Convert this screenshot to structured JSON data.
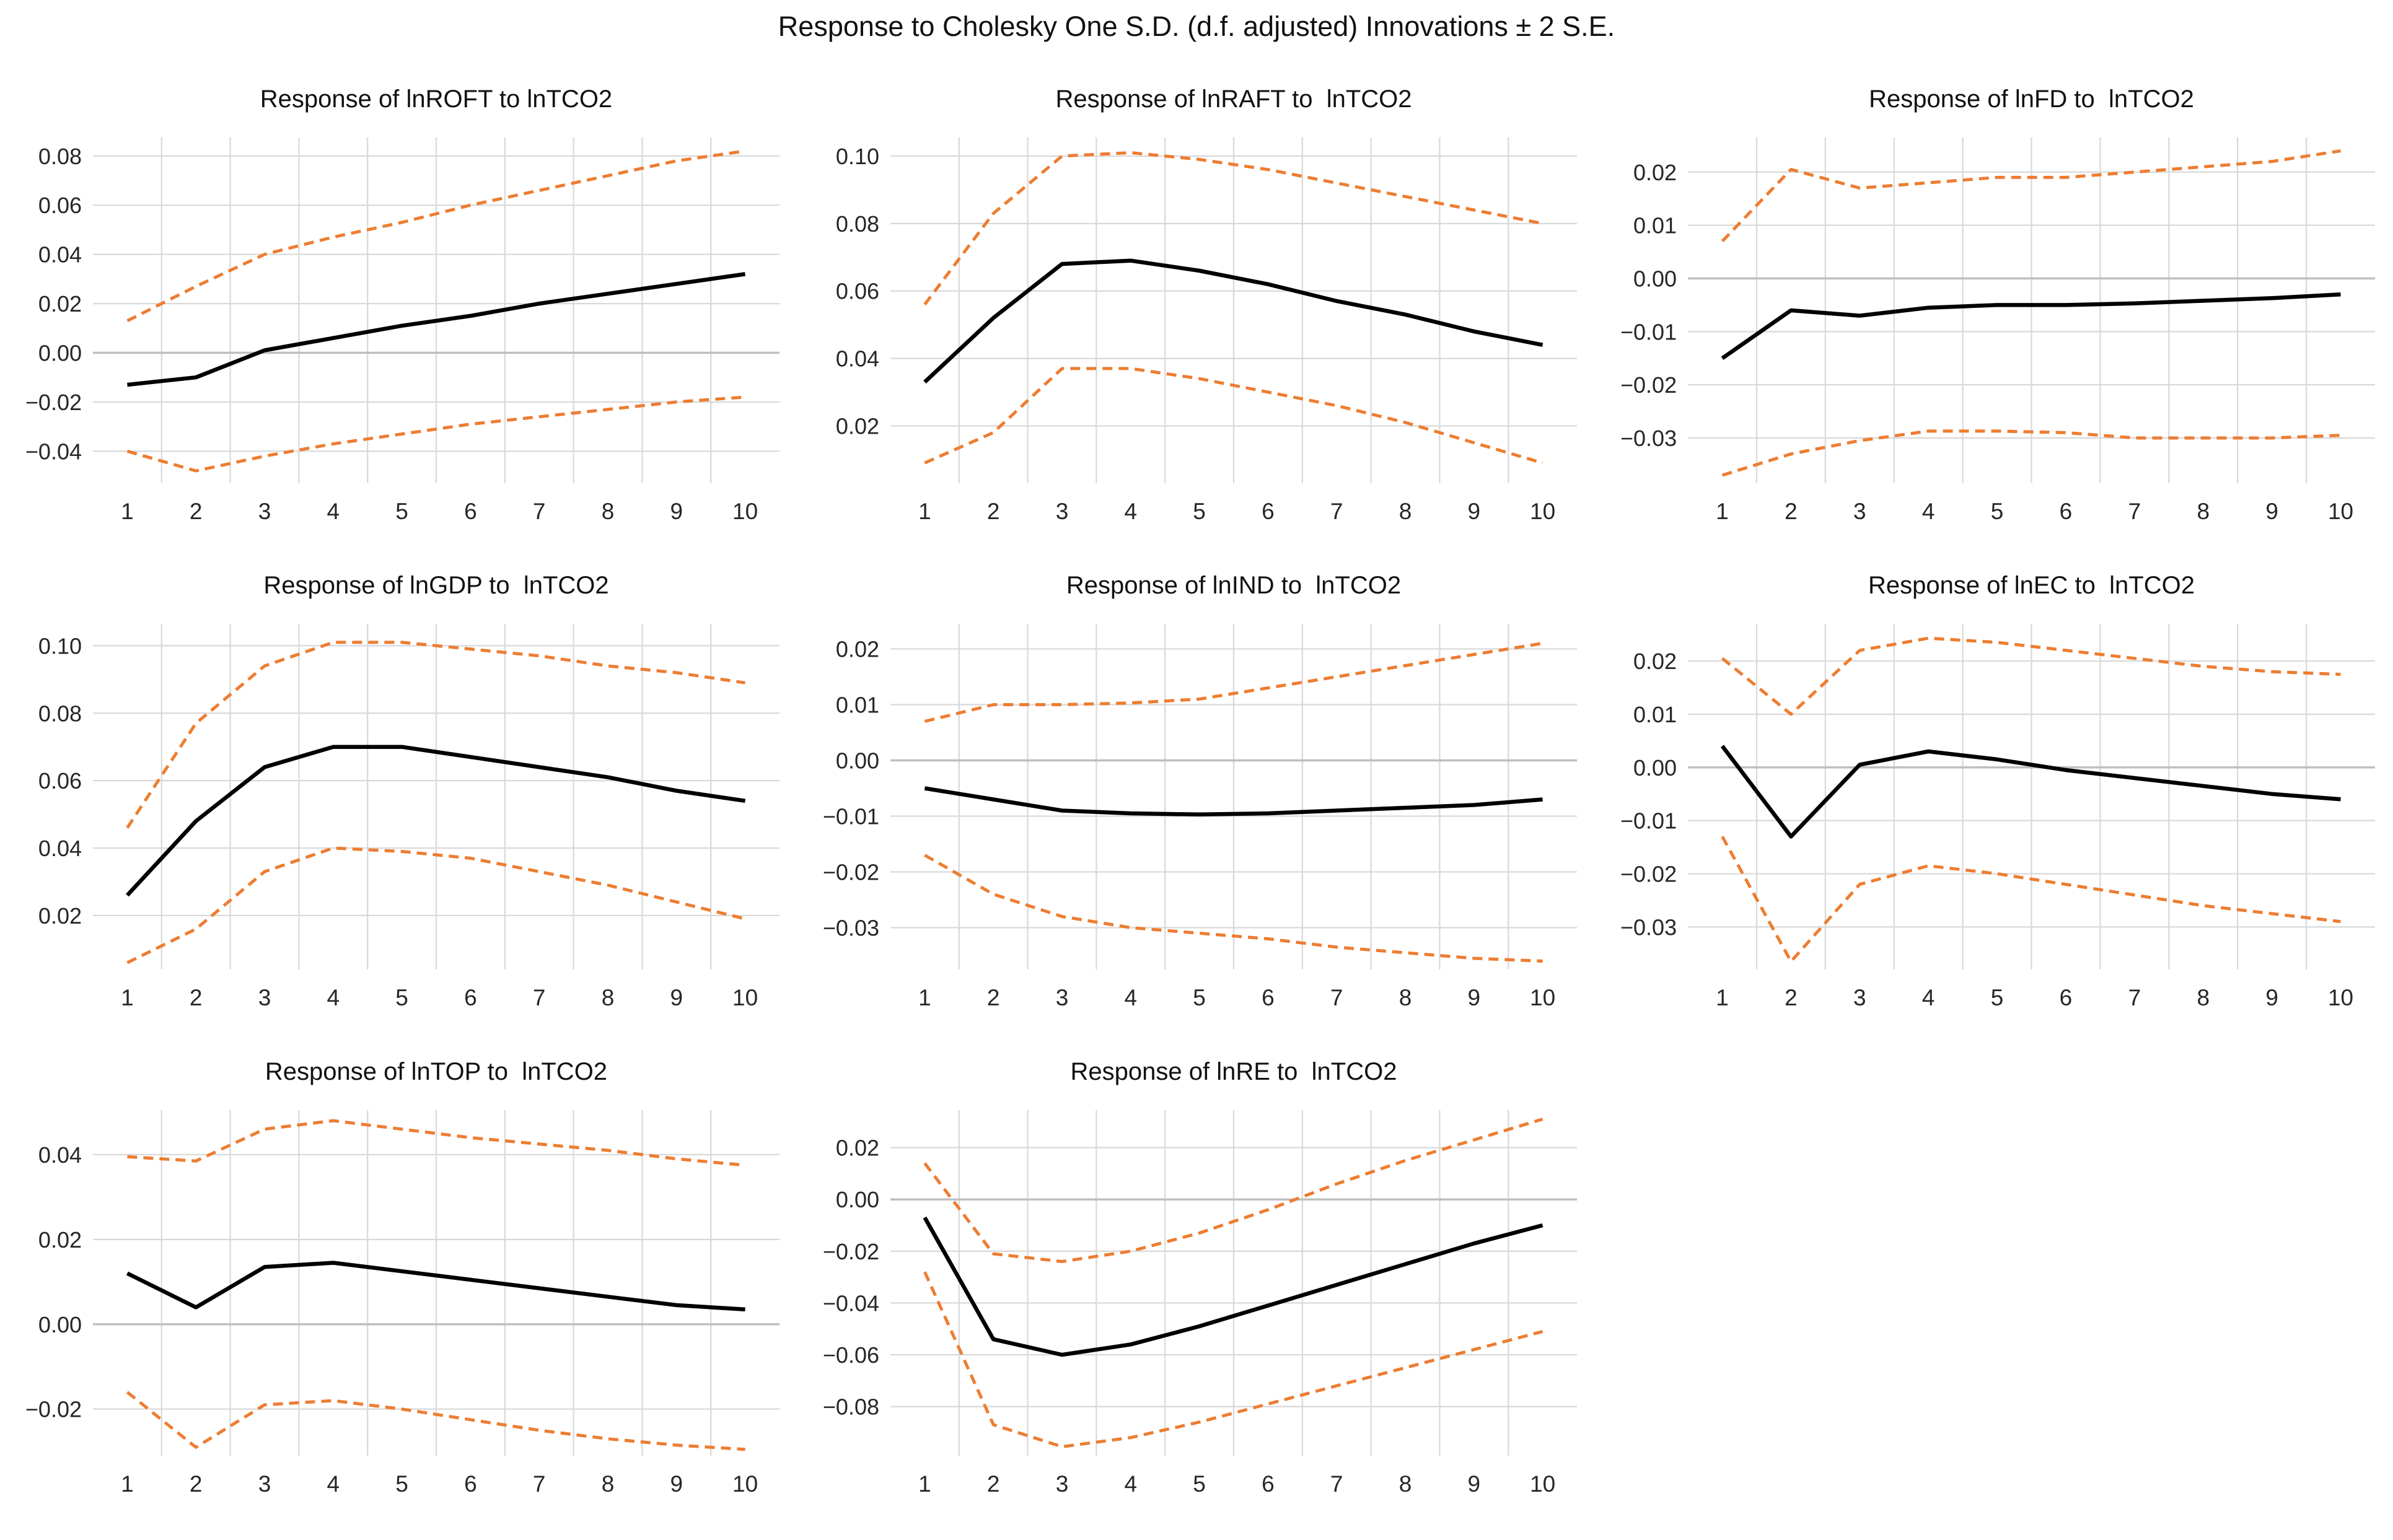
{
  "page_title": "Response to Cholesky One S.D. (d.f. adjusted) Innovations ± 2 S.E.",
  "x_categories": [
    1,
    2,
    3,
    4,
    5,
    6,
    7,
    8,
    9,
    10
  ],
  "styles": {
    "band_color": "#ED7D31",
    "response_color": "#000000",
    "grid_color": "#D9D9D9",
    "zero_line_color": "#BFBFBF",
    "text_color": "#262626",
    "background": "#FFFFFF"
  },
  "chart_data": [
    {
      "id": "lnROFT",
      "type": "line",
      "title": "Response of lnROFT to lnTCO2",
      "xlabel": "",
      "ylabel": "",
      "ylim": [
        -0.053,
        0.0875
      ],
      "grid": true,
      "legend": "none",
      "yticks": [
        {
          "v": 0.08,
          "label": "0.08"
        },
        {
          "v": 0.06,
          "label": "0.06"
        },
        {
          "v": 0.04,
          "label": "0.04"
        },
        {
          "v": 0.02,
          "label": "0.02"
        },
        {
          "v": 0.0,
          "label": "0.00"
        },
        {
          "v": -0.02,
          "label": "−0.02"
        },
        {
          "v": -0.04,
          "label": "−0.04"
        }
      ],
      "series": [
        {
          "name": "upper-2se-band",
          "line_style": "dashed",
          "color": "#ED7D31",
          "values": [
            0.013,
            0.027,
            0.04,
            0.047,
            0.053,
            0.06,
            0.066,
            0.072,
            0.078,
            0.082
          ]
        },
        {
          "name": "response",
          "line_style": "solid",
          "color": "#000000",
          "values": [
            -0.013,
            -0.01,
            0.001,
            0.006,
            0.011,
            0.015,
            0.02,
            0.024,
            0.028,
            0.032
          ]
        },
        {
          "name": "lower-2se-band",
          "line_style": "dashed",
          "color": "#ED7D31",
          "values": [
            -0.04,
            -0.048,
            -0.042,
            -0.037,
            -0.033,
            -0.029,
            -0.026,
            -0.023,
            -0.02,
            -0.018
          ]
        }
      ]
    },
    {
      "id": "lnRAFT",
      "type": "line",
      "title": "Response of lnRAFT to  lnTCO2",
      "xlabel": "",
      "ylabel": "",
      "ylim": [
        0.003,
        0.1055
      ],
      "grid": true,
      "legend": "none",
      "yticks": [
        {
          "v": 0.1,
          "label": "0.10"
        },
        {
          "v": 0.08,
          "label": "0.08"
        },
        {
          "v": 0.06,
          "label": "0.06"
        },
        {
          "v": 0.04,
          "label": "0.04"
        },
        {
          "v": 0.02,
          "label": "0.02"
        }
      ],
      "series": [
        {
          "name": "upper-2se-band",
          "line_style": "dashed",
          "color": "#ED7D31",
          "values": [
            0.056,
            0.083,
            0.1,
            0.101,
            0.099,
            0.096,
            0.092,
            0.088,
            0.084,
            0.08
          ]
        },
        {
          "name": "response",
          "line_style": "solid",
          "color": "#000000",
          "values": [
            0.033,
            0.052,
            0.068,
            0.069,
            0.066,
            0.062,
            0.057,
            0.053,
            0.048,
            0.044
          ]
        },
        {
          "name": "lower-2se-band",
          "line_style": "dashed",
          "color": "#ED7D31",
          "values": [
            0.009,
            0.018,
            0.037,
            0.037,
            0.034,
            0.03,
            0.026,
            0.021,
            0.015,
            0.009
          ]
        }
      ]
    },
    {
      "id": "lnFD",
      "type": "line",
      "title": "Response of lnFD to  lnTCO2",
      "xlabel": "",
      "ylabel": "",
      "ylim": [
        -0.0385,
        0.0265
      ],
      "grid": true,
      "legend": "none",
      "yticks": [
        {
          "v": 0.02,
          "label": "0.02"
        },
        {
          "v": 0.01,
          "label": "0.01"
        },
        {
          "v": 0.0,
          "label": "0.00"
        },
        {
          "v": -0.01,
          "label": "−0.01"
        },
        {
          "v": -0.02,
          "label": "−0.02"
        },
        {
          "v": -0.03,
          "label": "−0.03"
        }
      ],
      "series": [
        {
          "name": "upper-2se-band",
          "line_style": "dashed",
          "color": "#ED7D31",
          "values": [
            0.007,
            0.0205,
            0.017,
            0.018,
            0.019,
            0.019,
            0.02,
            0.021,
            0.022,
            0.024
          ]
        },
        {
          "name": "response",
          "line_style": "solid",
          "color": "#000000",
          "values": [
            -0.015,
            -0.006,
            -0.007,
            -0.0055,
            -0.005,
            -0.005,
            -0.0047,
            -0.0042,
            -0.0037,
            -0.003
          ]
        },
        {
          "name": "lower-2se-band",
          "line_style": "dashed",
          "color": "#ED7D31",
          "values": [
            -0.037,
            -0.033,
            -0.0305,
            -0.0287,
            -0.0287,
            -0.029,
            -0.03,
            -0.03,
            -0.03,
            -0.0295
          ]
        }
      ]
    },
    {
      "id": "lnGDP",
      "type": "line",
      "title": "Response of lnGDP to  lnTCO2",
      "xlabel": "",
      "ylabel": "",
      "ylim": [
        0.004,
        0.1065
      ],
      "grid": true,
      "legend": "none",
      "yticks": [
        {
          "v": 0.1,
          "label": "0.10"
        },
        {
          "v": 0.08,
          "label": "0.08"
        },
        {
          "v": 0.06,
          "label": "0.06"
        },
        {
          "v": 0.04,
          "label": "0.04"
        },
        {
          "v": 0.02,
          "label": "0.02"
        }
      ],
      "series": [
        {
          "name": "upper-2se-band",
          "line_style": "dashed",
          "color": "#ED7D31",
          "values": [
            0.046,
            0.077,
            0.094,
            0.101,
            0.101,
            0.099,
            0.097,
            0.094,
            0.092,
            0.089
          ]
        },
        {
          "name": "response",
          "line_style": "solid",
          "color": "#000000",
          "values": [
            0.026,
            0.048,
            0.064,
            0.07,
            0.07,
            0.067,
            0.064,
            0.061,
            0.057,
            0.054
          ]
        },
        {
          "name": "lower-2se-band",
          "line_style": "dashed",
          "color": "#ED7D31",
          "values": [
            0.006,
            0.016,
            0.033,
            0.04,
            0.039,
            0.037,
            0.033,
            0.029,
            0.024,
            0.019
          ]
        }
      ]
    },
    {
      "id": "lnIND",
      "type": "line",
      "title": "Response of lnIND to  lnTCO2",
      "xlabel": "",
      "ylabel": "",
      "ylim": [
        -0.0375,
        0.0245
      ],
      "grid": true,
      "legend": "none",
      "yticks": [
        {
          "v": 0.02,
          "label": "0.02"
        },
        {
          "v": 0.01,
          "label": "0.01"
        },
        {
          "v": 0.0,
          "label": "0.00"
        },
        {
          "v": -0.01,
          "label": "−0.01"
        },
        {
          "v": -0.02,
          "label": "−0.02"
        },
        {
          "v": -0.03,
          "label": "−0.03"
        }
      ],
      "series": [
        {
          "name": "upper-2se-band",
          "line_style": "dashed",
          "color": "#ED7D31",
          "values": [
            0.007,
            0.01,
            0.01,
            0.0103,
            0.011,
            0.013,
            0.015,
            0.017,
            0.019,
            0.021
          ]
        },
        {
          "name": "response",
          "line_style": "solid",
          "color": "#000000",
          "values": [
            -0.005,
            -0.007,
            -0.009,
            -0.0095,
            -0.0097,
            -0.0095,
            -0.009,
            -0.0085,
            -0.008,
            -0.007
          ]
        },
        {
          "name": "lower-2se-band",
          "line_style": "dashed",
          "color": "#ED7D31",
          "values": [
            -0.017,
            -0.024,
            -0.028,
            -0.03,
            -0.031,
            -0.032,
            -0.0335,
            -0.0345,
            -0.0355,
            -0.036
          ]
        }
      ]
    },
    {
      "id": "lnEC",
      "type": "line",
      "title": "Response of lnEC to  lnTCO2",
      "xlabel": "",
      "ylabel": "",
      "ylim": [
        -0.038,
        0.027
      ],
      "grid": true,
      "legend": "none",
      "yticks": [
        {
          "v": 0.02,
          "label": "0.02"
        },
        {
          "v": 0.01,
          "label": "0.01"
        },
        {
          "v": 0.0,
          "label": "0.00"
        },
        {
          "v": -0.01,
          "label": "−0.01"
        },
        {
          "v": -0.02,
          "label": "−0.02"
        },
        {
          "v": -0.03,
          "label": "−0.03"
        }
      ],
      "series": [
        {
          "name": "upper-2se-band",
          "line_style": "dashed",
          "color": "#ED7D31",
          "values": [
            0.0205,
            0.01,
            0.022,
            0.0243,
            0.0235,
            0.022,
            0.0205,
            0.019,
            0.018,
            0.0175
          ]
        },
        {
          "name": "response",
          "line_style": "solid",
          "color": "#000000",
          "values": [
            0.004,
            -0.013,
            0.0005,
            0.003,
            0.0015,
            -0.0005,
            -0.002,
            -0.0035,
            -0.005,
            -0.006
          ]
        },
        {
          "name": "lower-2se-band",
          "line_style": "dashed",
          "color": "#ED7D31",
          "values": [
            -0.013,
            -0.0365,
            -0.022,
            -0.0185,
            -0.02,
            -0.022,
            -0.024,
            -0.026,
            -0.0275,
            -0.029
          ]
        }
      ]
    },
    {
      "id": "lnTOP",
      "type": "line",
      "title": "Response of lnTOP to  lnTCO2",
      "xlabel": "",
      "ylabel": "",
      "ylim": [
        -0.031,
        0.0505
      ],
      "grid": true,
      "legend": "none",
      "yticks": [
        {
          "v": 0.04,
          "label": "0.04"
        },
        {
          "v": 0.02,
          "label": "0.02"
        },
        {
          "v": 0.0,
          "label": "0.00"
        },
        {
          "v": -0.02,
          "label": "−0.02"
        }
      ],
      "series": [
        {
          "name": "upper-2se-band",
          "line_style": "dashed",
          "color": "#ED7D31",
          "values": [
            0.0395,
            0.0385,
            0.046,
            0.048,
            0.046,
            0.044,
            0.0425,
            0.041,
            0.039,
            0.0375
          ]
        },
        {
          "name": "response",
          "line_style": "solid",
          "color": "#000000",
          "values": [
            0.012,
            0.004,
            0.0135,
            0.0145,
            0.0125,
            0.0105,
            0.0085,
            0.0065,
            0.0045,
            0.0035
          ]
        },
        {
          "name": "lower-2se-band",
          "line_style": "dashed",
          "color": "#ED7D31",
          "values": [
            -0.016,
            -0.029,
            -0.019,
            -0.018,
            -0.02,
            -0.0225,
            -0.025,
            -0.027,
            -0.0285,
            -0.0295
          ]
        }
      ]
    },
    {
      "id": "lnRE",
      "type": "line",
      "title": "Response of lnRE to  lnTCO2",
      "xlabel": "",
      "ylabel": "",
      "ylim": [
        -0.099,
        0.0345
      ],
      "grid": true,
      "legend": "none",
      "yticks": [
        {
          "v": 0.02,
          "label": "0.02"
        },
        {
          "v": 0.0,
          "label": "0.00"
        },
        {
          "v": -0.02,
          "label": "−0.02"
        },
        {
          "v": -0.04,
          "label": "−0.04"
        },
        {
          "v": -0.06,
          "label": "−0.06"
        },
        {
          "v": -0.08,
          "label": "−0.08"
        }
      ],
      "series": [
        {
          "name": "upper-2se-band",
          "line_style": "dashed",
          "color": "#ED7D31",
          "values": [
            0.014,
            -0.021,
            -0.024,
            -0.02,
            -0.013,
            -0.004,
            0.006,
            0.015,
            0.023,
            0.031
          ]
        },
        {
          "name": "response",
          "line_style": "solid",
          "color": "#000000",
          "values": [
            -0.007,
            -0.054,
            -0.06,
            -0.056,
            -0.049,
            -0.041,
            -0.033,
            -0.025,
            -0.017,
            -0.01
          ]
        },
        {
          "name": "lower-2se-band",
          "line_style": "dashed",
          "color": "#ED7D31",
          "values": [
            -0.028,
            -0.087,
            -0.0955,
            -0.092,
            -0.086,
            -0.079,
            -0.072,
            -0.065,
            -0.058,
            -0.051
          ]
        }
      ]
    }
  ]
}
